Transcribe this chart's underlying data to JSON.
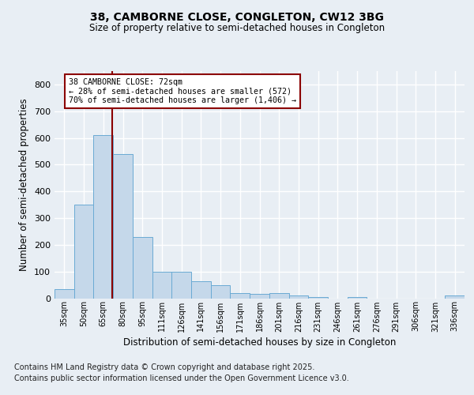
{
  "title1": "38, CAMBORNE CLOSE, CONGLETON, CW12 3BG",
  "title2": "Size of property relative to semi-detached houses in Congleton",
  "xlabel": "Distribution of semi-detached houses by size in Congleton",
  "ylabel": "Number of semi-detached properties",
  "categories": [
    "35sqm",
    "50sqm",
    "65sqm",
    "80sqm",
    "95sqm",
    "111sqm",
    "126sqm",
    "141sqm",
    "156sqm",
    "171sqm",
    "186sqm",
    "201sqm",
    "216sqm",
    "231sqm",
    "246sqm",
    "261sqm",
    "276sqm",
    "291sqm",
    "306sqm",
    "321sqm",
    "336sqm"
  ],
  "values": [
    35,
    350,
    610,
    540,
    230,
    100,
    100,
    65,
    50,
    20,
    15,
    20,
    10,
    5,
    0,
    5,
    0,
    0,
    0,
    0,
    10
  ],
  "bar_color": "#c5d8ea",
  "bar_edge_color": "#6aaad4",
  "vline_color": "#8B0000",
  "annotation_text": "38 CAMBORNE CLOSE: 72sqm\n← 28% of semi-detached houses are smaller (572)\n70% of semi-detached houses are larger (1,406) →",
  "annotation_box_color": "#ffffff",
  "annotation_box_edge_color": "#8B0000",
  "ylim": [
    0,
    850
  ],
  "yticks": [
    0,
    100,
    200,
    300,
    400,
    500,
    600,
    700,
    800
  ],
  "footer": "Contains HM Land Registry data © Crown copyright and database right 2025.\nContains public sector information licensed under the Open Government Licence v3.0.",
  "bg_color": "#e8eef4",
  "plot_bg_color": "#e8eef4",
  "grid_color": "#ffffff"
}
